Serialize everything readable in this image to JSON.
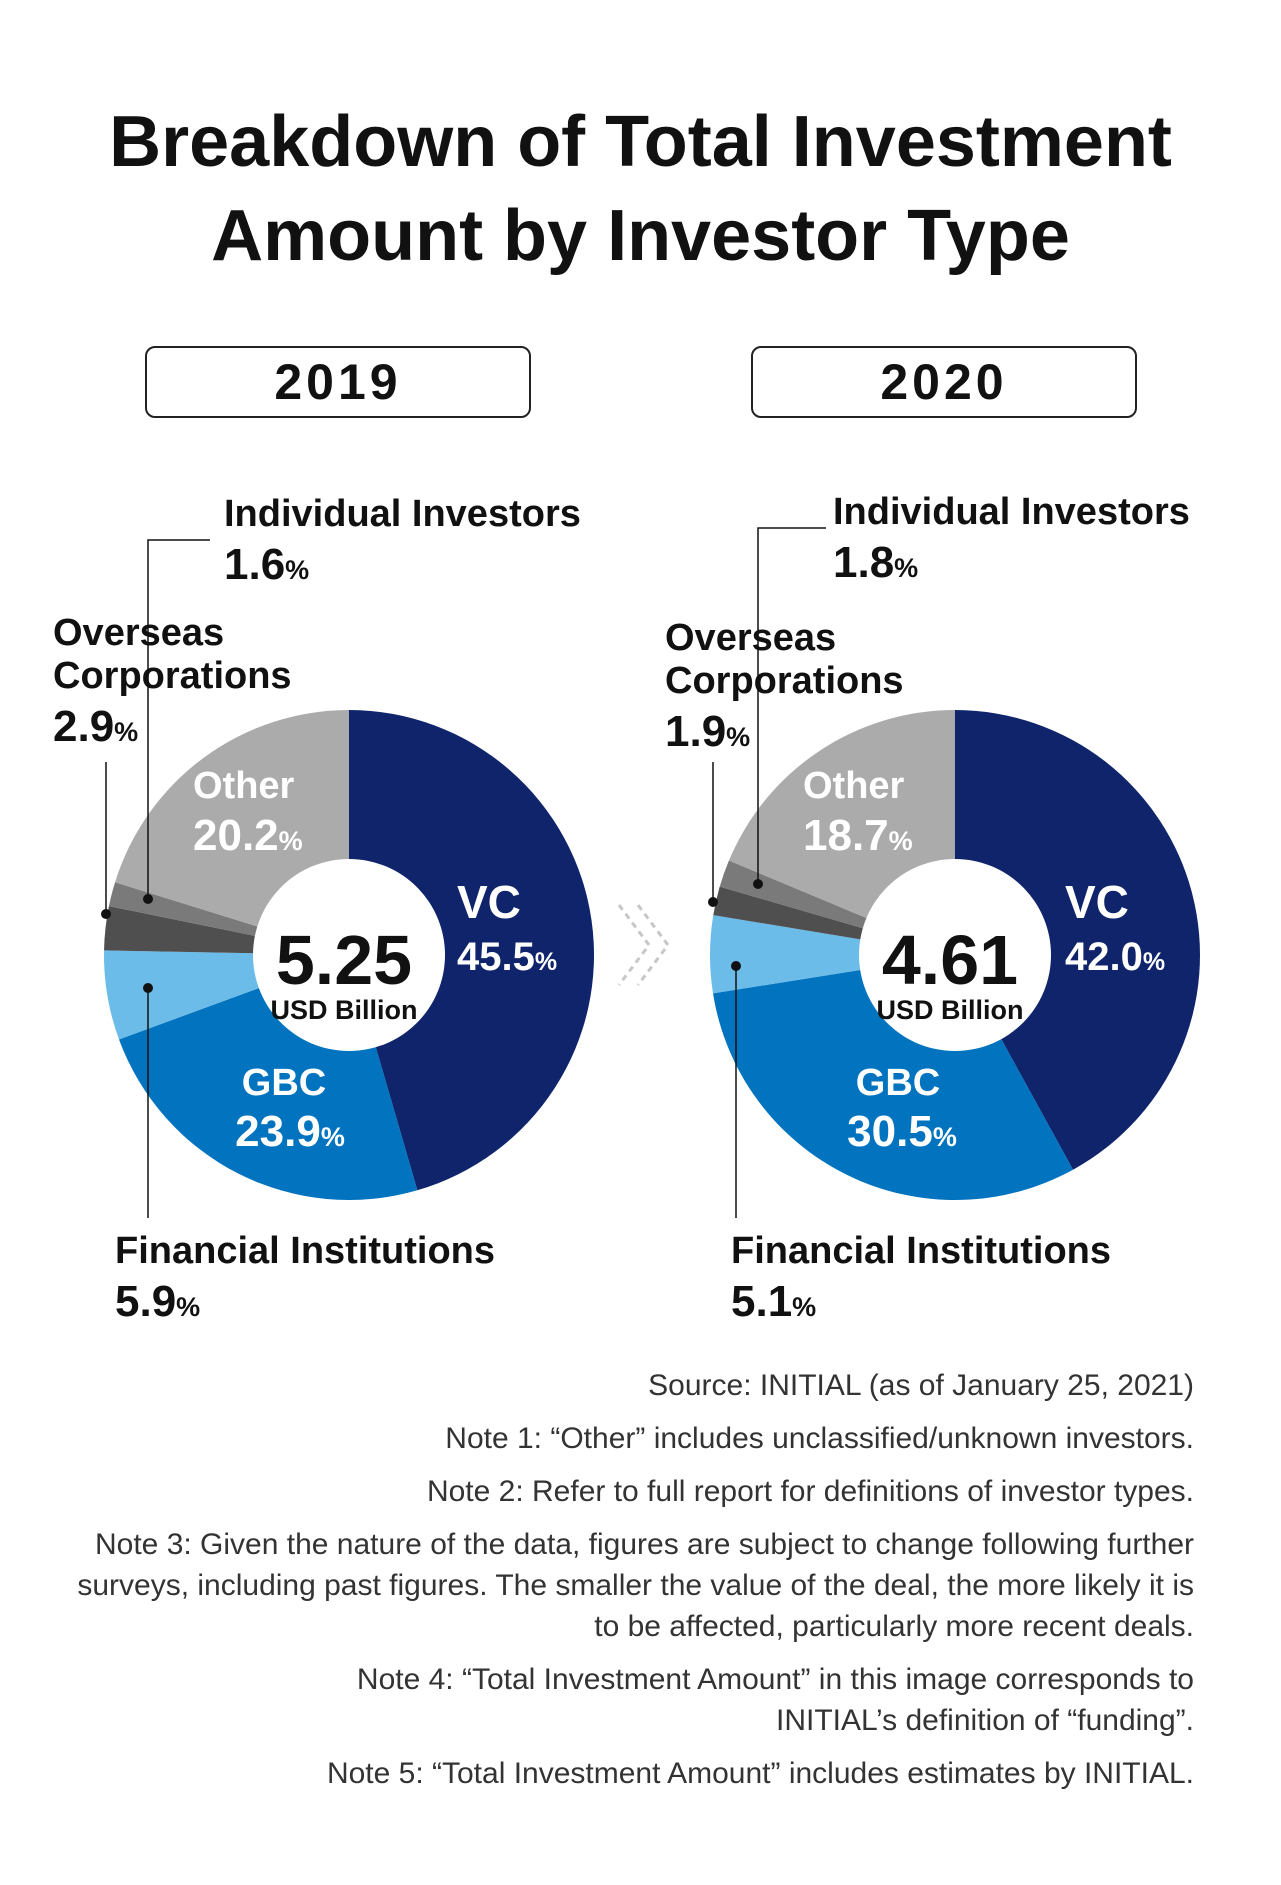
{
  "title_line1": "Breakdown of Total Investment",
  "title_line2": "Amount by Investor Type",
  "percent_sign": "%",
  "chart_data": [
    {
      "type": "pie",
      "year": "2019",
      "title": "Breakdown of Total Investment Amount by Investor Type",
      "total_value": "5.25",
      "total_unit": "USD Billion",
      "categories": [
        "VC",
        "GBC",
        "Financial Institutions",
        "Overseas Corporations",
        "Individual Investors",
        "Other"
      ],
      "values": [
        45.5,
        23.9,
        5.9,
        2.9,
        1.6,
        20.2
      ],
      "colors": [
        "#0f246b",
        "#0173bf",
        "#6cbce9",
        "#4f4f4f",
        "#7a7a7a",
        "#ababab"
      ]
    },
    {
      "type": "pie",
      "year": "2020",
      "title": "Breakdown of Total Investment Amount by Investor Type",
      "total_value": "4.61",
      "total_unit": "USD Billion",
      "categories": [
        "VC",
        "GBC",
        "Financial Institutions",
        "Overseas Corporations",
        "Individual Investors",
        "Other"
      ],
      "values": [
        42.0,
        30.5,
        5.1,
        1.9,
        1.8,
        18.7
      ],
      "colors": [
        "#0f246b",
        "#0173bf",
        "#6cbce9",
        "#4f4f4f",
        "#7a7a7a",
        "#ababab"
      ]
    }
  ],
  "labels": {
    "vc": "VC",
    "gbc": "GBC",
    "other": "Other",
    "financial": "Financial Institutions",
    "overseas_line1": "Overseas",
    "overseas_line2": "Corporations",
    "individual": "Individual Investors"
  },
  "notes": [
    "Source: INITIAL (as of January 25, 2021)",
    "Note 1: “Other” includes unclassified/unknown investors.",
    "Note 2: Refer to full report for definitions of investor types.",
    "Note 3: Given the nature of the data, figures are subject to change following further surveys, including past figures. The smaller the value of the deal, the more likely it is to be affected, particularly more recent deals.",
    "Note 4: “Total Investment Amount” in this image corresponds to INITIAL’s definition of “funding”.",
    "Note 5: “Total Investment Amount” includes estimates by INITIAL."
  ]
}
